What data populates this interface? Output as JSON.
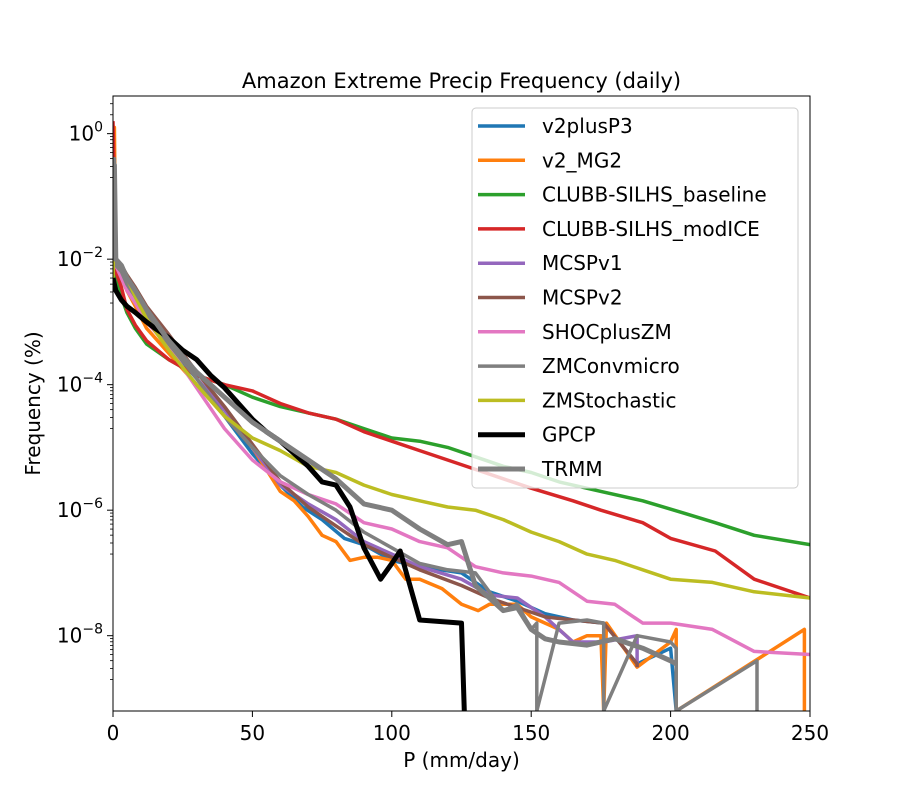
{
  "chart_data": {
    "type": "line",
    "title": "Amazon Extreme Precip Frequency (daily)",
    "xlabel": "P (mm/day)",
    "ylabel": "Frequency (%)",
    "xlim": [
      0,
      250
    ],
    "ylim_log10": [
      -9.2,
      0.6
    ],
    "y_scale": "log",
    "x_ticks": [
      0,
      50,
      100,
      150,
      200,
      250
    ],
    "y_ticks": [
      {
        "exp": 0,
        "base": "10",
        "sup": "0"
      },
      {
        "exp": -2,
        "base": "10",
        "sup": "−2"
      },
      {
        "exp": -4,
        "base": "10",
        "sup": "−4"
      },
      {
        "exp": -6,
        "base": "10",
        "sup": "−6"
      },
      {
        "exp": -8,
        "base": "10",
        "sup": "−8"
      }
    ],
    "legend_position": "upper-right",
    "series": [
      {
        "name": "v2plusP3",
        "color": "#1f77b4",
        "width": 3.5,
        "x": [
          0,
          1,
          3,
          5,
          8,
          12,
          20,
          30,
          40,
          50,
          55,
          60,
          68,
          75,
          83,
          90,
          100,
          110,
          125,
          135,
          145,
          155,
          165,
          176,
          188,
          200,
          202
        ],
        "y": [
          -2.3,
          -2.0,
          -2.15,
          -2.35,
          -2.6,
          -2.9,
          -3.4,
          -3.9,
          -4.5,
          -5.1,
          -5.35,
          -5.6,
          -5.95,
          -6.15,
          -6.45,
          -6.55,
          -6.8,
          -6.9,
          -7.0,
          -7.3,
          -7.45,
          -7.65,
          -7.75,
          -7.8,
          -8.45,
          -8.2,
          -9.2
        ]
      },
      {
        "name": "v2_MG2",
        "color": "#ff7f0e",
        "width": 3.5,
        "x": [
          0,
          0.5,
          1,
          3,
          5,
          8,
          12,
          20,
          30,
          40,
          50,
          55,
          60,
          65,
          70,
          75,
          80,
          85,
          90,
          95,
          100,
          105,
          110,
          118,
          125,
          131,
          135,
          140,
          145,
          150,
          155,
          160,
          165,
          170,
          175,
          176,
          177,
          188,
          200,
          202,
          202,
          248,
          248
        ],
        "y": [
          -1.0,
          0.1,
          -2.1,
          -2.3,
          -2.5,
          -2.75,
          -3.1,
          -3.5,
          -4.0,
          -4.5,
          -5.0,
          -5.35,
          -5.7,
          -5.85,
          -6.1,
          -6.4,
          -6.5,
          -6.8,
          -6.75,
          -6.75,
          -6.8,
          -7.1,
          -7.1,
          -7.25,
          -7.5,
          -7.6,
          -7.5,
          -7.5,
          -7.5,
          -7.7,
          -7.8,
          -7.9,
          -8.1,
          -8.0,
          -8.0,
          -9.2,
          -7.8,
          -8.5,
          -8.1,
          -7.9,
          -9.2,
          -7.9,
          -9.2
        ]
      },
      {
        "name": "CLUBB-SILHS_baseline",
        "color": "#2ca02c",
        "width": 3.5,
        "x": [
          0,
          1,
          3,
          5,
          8,
          12,
          20,
          30,
          40,
          50,
          60,
          70,
          80,
          90,
          100,
          110,
          120,
          130,
          140,
          150,
          160,
          175,
          190,
          205,
          216,
          230,
          250
        ],
        "y": [
          -0.8,
          -2.3,
          -2.6,
          -2.85,
          -3.1,
          -3.35,
          -3.6,
          -3.85,
          -4.0,
          -4.2,
          -4.35,
          -4.45,
          -4.55,
          -4.7,
          -4.85,
          -4.9,
          -5.0,
          -5.15,
          -5.3,
          -5.4,
          -5.55,
          -5.7,
          -5.85,
          -6.05,
          -6.2,
          -6.4,
          -6.55
        ]
      },
      {
        "name": "CLUBB-SILHS_modICE",
        "color": "#d62728",
        "width": 3.5,
        "x": [
          0,
          1,
          3,
          5,
          8,
          12,
          20,
          30,
          40,
          50,
          60,
          70,
          80,
          90,
          100,
          110,
          120,
          130,
          140,
          150,
          165,
          175,
          190,
          200,
          216,
          230,
          250
        ],
        "y": [
          0.2,
          -2.2,
          -2.45,
          -2.8,
          -3.05,
          -3.3,
          -3.6,
          -3.85,
          -4.0,
          -4.1,
          -4.3,
          -4.45,
          -4.55,
          -4.75,
          -4.9,
          -5.05,
          -5.2,
          -5.35,
          -5.5,
          -5.65,
          -5.85,
          -6.0,
          -6.2,
          -6.45,
          -6.65,
          -7.1,
          -7.4
        ]
      },
      {
        "name": "MCSPv1",
        "color": "#9467bd",
        "width": 3.5,
        "x": [
          0,
          1,
          3,
          5,
          8,
          12,
          20,
          30,
          40,
          50,
          60,
          70,
          80,
          90,
          100,
          110,
          125,
          135,
          145,
          155,
          165,
          176,
          188,
          188
        ],
        "y": [
          -2.1,
          -2.0,
          -2.15,
          -2.3,
          -2.5,
          -2.8,
          -3.3,
          -3.9,
          -4.4,
          -5.0,
          -5.6,
          -5.9,
          -6.15,
          -6.5,
          -6.7,
          -6.9,
          -7.1,
          -7.35,
          -7.4,
          -7.7,
          -8.1,
          -8.1,
          -8.0,
          -8.5
        ]
      },
      {
        "name": "MCSPv2",
        "color": "#8c564b",
        "width": 3.5,
        "x": [
          0,
          1,
          3,
          5,
          8,
          12,
          20,
          30,
          40,
          50,
          60,
          70,
          80,
          90,
          100,
          110,
          125,
          135,
          145,
          155,
          165,
          176,
          188,
          188
        ],
        "y": [
          -2.1,
          -2.0,
          -2.1,
          -2.25,
          -2.45,
          -2.75,
          -3.2,
          -3.8,
          -4.35,
          -4.95,
          -5.55,
          -5.95,
          -6.25,
          -6.55,
          -6.75,
          -6.95,
          -7.2,
          -7.4,
          -7.55,
          -7.7,
          -7.75,
          -7.8,
          -8.45,
          -8.5
        ]
      },
      {
        "name": "SHOCplusZM",
        "color": "#e377c2",
        "width": 3.5,
        "x": [
          0,
          1,
          3,
          5,
          8,
          12,
          20,
          30,
          40,
          50,
          60,
          70,
          80,
          90,
          100,
          110,
          120,
          130,
          140,
          150,
          160,
          170,
          180,
          190,
          200,
          215,
          230,
          250
        ],
        "y": [
          -2.0,
          -2.1,
          -2.3,
          -2.5,
          -2.7,
          -3.0,
          -3.4,
          -4.05,
          -4.7,
          -5.2,
          -5.55,
          -5.75,
          -5.9,
          -6.2,
          -6.3,
          -6.5,
          -6.6,
          -6.9,
          -7.0,
          -7.05,
          -7.15,
          -7.45,
          -7.5,
          -7.8,
          -7.8,
          -7.9,
          -8.25,
          -8.3
        ]
      },
      {
        "name": "ZMConvmicro",
        "color": "#7f7f7f",
        "width": 3.5,
        "x": [
          0,
          0.5,
          1,
          3,
          5,
          8,
          12,
          20,
          30,
          40,
          50,
          60,
          70,
          80,
          90,
          100,
          110,
          120,
          130,
          135,
          140,
          145,
          150,
          152,
          152,
          160,
          170,
          176,
          176,
          188,
          200,
          202,
          202,
          231,
          231
        ],
        "y": [
          -1.5,
          -0.4,
          -2.1,
          -2.2,
          -2.4,
          -2.6,
          -2.9,
          -3.35,
          -3.9,
          -4.5,
          -5.0,
          -5.45,
          -5.75,
          -6.0,
          -6.35,
          -6.6,
          -6.85,
          -6.95,
          -7.0,
          -7.3,
          -7.6,
          -7.5,
          -7.9,
          -7.8,
          -9.2,
          -7.8,
          -7.75,
          -7.8,
          -9.2,
          -8.0,
          -8.1,
          -8.2,
          -9.2,
          -8.4,
          -9.2
        ]
      },
      {
        "name": "ZMStochastic",
        "color": "#bcbd22",
        "width": 3.5,
        "x": [
          0,
          0.5,
          1,
          3,
          5,
          8,
          12,
          20,
          30,
          40,
          50,
          60,
          70,
          80,
          90,
          100,
          110,
          120,
          130,
          140,
          150,
          160,
          170,
          180,
          190,
          200,
          215,
          230,
          250
        ],
        "y": [
          -2.4,
          -0.5,
          -2.0,
          -2.1,
          -2.3,
          -2.6,
          -2.95,
          -3.45,
          -4.0,
          -4.5,
          -4.85,
          -5.05,
          -5.3,
          -5.4,
          -5.6,
          -5.75,
          -5.85,
          -5.95,
          -6.0,
          -6.15,
          -6.35,
          -6.5,
          -6.7,
          -6.8,
          -6.95,
          -7.1,
          -7.15,
          -7.3,
          -7.4
        ]
      },
      {
        "name": "GPCP",
        "color": "#000000",
        "width": 5,
        "x": [
          0,
          1,
          3,
          5,
          8,
          12,
          15,
          20,
          25,
          30,
          35,
          40,
          45,
          50,
          55,
          60,
          65,
          70,
          75,
          80,
          85,
          90,
          96,
          100,
          103,
          110,
          125,
          126
        ],
        "y": [
          -2.3,
          -2.5,
          -2.65,
          -2.75,
          -2.85,
          -3.0,
          -3.1,
          -3.25,
          -3.45,
          -3.6,
          -3.85,
          -4.05,
          -4.3,
          -4.55,
          -4.75,
          -4.9,
          -5.1,
          -5.3,
          -5.55,
          -5.6,
          -5.95,
          -6.6,
          -7.1,
          -6.85,
          -6.65,
          -7.75,
          -7.8,
          -9.2
        ]
      },
      {
        "name": "TRMM",
        "color": "#7f7f7f",
        "width": 5,
        "x": [
          0,
          0.5,
          1,
          3,
          5,
          8,
          12,
          20,
          30,
          40,
          50,
          60,
          70,
          80,
          90,
          100,
          110,
          120,
          125,
          130,
          135,
          140,
          145,
          150,
          155,
          160,
          170,
          180,
          190,
          200,
          202
        ],
        "y": [
          -2.0,
          -0.5,
          -2.0,
          -2.1,
          -2.3,
          -2.5,
          -2.8,
          -3.3,
          -3.8,
          -4.2,
          -4.6,
          -4.9,
          -5.2,
          -5.5,
          -5.9,
          -6.0,
          -6.3,
          -6.55,
          -6.5,
          -7.2,
          -7.4,
          -7.6,
          -7.55,
          -7.9,
          -8.05,
          -8.1,
          -8.15,
          -8.05,
          -8.2,
          -8.4,
          -8.45
        ]
      }
    ]
  }
}
